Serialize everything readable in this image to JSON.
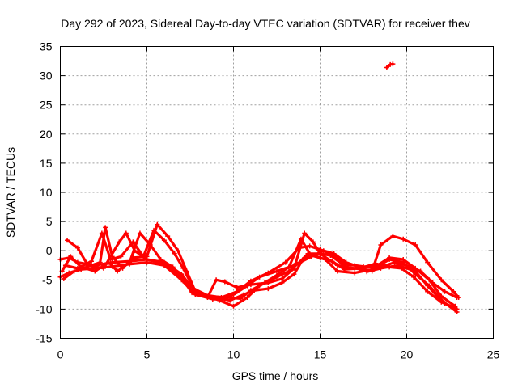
{
  "chart_data": {
    "type": "scatter",
    "title": "Day 292 of 2023, Sidereal Day-to-day VTEC variation (SDTVAR) for receiver thev",
    "xlabel": "GPS time / hours",
    "ylabel": "SDTVAR / TECUs",
    "xlim": [
      0,
      25
    ],
    "ylim": [
      -15,
      35
    ],
    "xticks": [
      "0",
      "5",
      "10",
      "15",
      "20",
      "25"
    ],
    "yticks": [
      "-15",
      "-10",
      "-5",
      "0",
      "5",
      "10",
      "15",
      "20",
      "25",
      "30",
      "35"
    ],
    "grid": true,
    "color": "#ff0000",
    "series": [
      {
        "name": "trace-a",
        "points": [
          [
            0,
            -4.5
          ],
          [
            0.5,
            -3.8
          ],
          [
            1.2,
            -3.2
          ],
          [
            2,
            -3
          ],
          [
            3,
            -2.7
          ],
          [
            4,
            -2.3
          ],
          [
            5,
            -2
          ],
          [
            6,
            -2.5
          ],
          [
            7,
            -5
          ],
          [
            7.8,
            -7.5
          ],
          [
            8.8,
            -8.3
          ],
          [
            9.5,
            -8.3
          ],
          [
            10,
            -7.5
          ],
          [
            10.8,
            -6
          ],
          [
            11.5,
            -4.5
          ],
          [
            12.5,
            -3.5
          ],
          [
            13.5,
            -2.5
          ],
          [
            14.5,
            -1
          ],
          [
            15.2,
            0
          ],
          [
            15.8,
            -1
          ],
          [
            16.5,
            -2.3
          ],
          [
            17.5,
            -2.7
          ],
          [
            18.5,
            -2.8
          ],
          [
            19.3,
            -2
          ],
          [
            20,
            -2.5
          ],
          [
            20.8,
            -3.5
          ],
          [
            21.5,
            -5.5
          ],
          [
            22.2,
            -7
          ],
          [
            22.9,
            -8
          ]
        ]
      },
      {
        "name": "trace-b",
        "points": [
          [
            0,
            -1.5
          ],
          [
            0.5,
            -1.2
          ],
          [
            1,
            -2
          ],
          [
            2,
            -2.5
          ],
          [
            3,
            -2
          ],
          [
            4,
            -1.8
          ],
          [
            5,
            -1.5
          ],
          [
            6,
            -2
          ],
          [
            7,
            -4
          ],
          [
            7.5,
            -6
          ],
          [
            8.2,
            -7.5
          ],
          [
            9.3,
            -8
          ],
          [
            10.2,
            -7
          ],
          [
            11,
            -5.2
          ],
          [
            12,
            -3.8
          ],
          [
            13,
            -2
          ],
          [
            13.8,
            0.5
          ],
          [
            14.4,
            0.8
          ],
          [
            15,
            0.2
          ],
          [
            15.8,
            -0.5
          ],
          [
            16.5,
            -2
          ],
          [
            17.5,
            -3
          ],
          [
            18.3,
            -2.5
          ],
          [
            19,
            -1.2
          ],
          [
            19.8,
            -1.5
          ],
          [
            20.5,
            -3
          ],
          [
            21.3,
            -5
          ],
          [
            22,
            -7.8
          ],
          [
            22.8,
            -9.5
          ]
        ]
      },
      {
        "name": "trace-c",
        "points": [
          [
            0.2,
            -4.8
          ],
          [
            0.8,
            -3.5
          ],
          [
            1.5,
            -2.8
          ],
          [
            2.3,
            -2
          ],
          [
            2.6,
            4
          ],
          [
            3,
            -1
          ],
          [
            3.6,
            -3
          ],
          [
            4.2,
            -1.2
          ],
          [
            5,
            -1
          ],
          [
            5.6,
            4.5
          ],
          [
            6.2,
            2.5
          ],
          [
            6.8,
            0
          ],
          [
            7.3,
            -3.5
          ],
          [
            7.8,
            -7
          ],
          [
            8.5,
            -7.8
          ],
          [
            9.2,
            -8.5
          ],
          [
            10,
            -9.5
          ],
          [
            10.8,
            -8
          ],
          [
            11.5,
            -6
          ],
          [
            12.5,
            -4.5
          ],
          [
            13.2,
            -3.5
          ],
          [
            13.8,
            -2
          ],
          [
            14.3,
            -0.5
          ],
          [
            15,
            -0.5
          ],
          [
            15.6,
            -0.8
          ],
          [
            16.3,
            -2.3
          ],
          [
            17,
            -2.5
          ],
          [
            17.7,
            -3.6
          ],
          [
            18.5,
            -3
          ],
          [
            19.5,
            -2.5
          ],
          [
            20.5,
            -3.5
          ],
          [
            21.2,
            -6
          ],
          [
            22,
            -8.5
          ],
          [
            22.9,
            -10.5
          ]
        ]
      },
      {
        "name": "trace-d",
        "points": [
          [
            0.4,
            1.8
          ],
          [
            1,
            0.5
          ],
          [
            1.6,
            -2.5
          ],
          [
            2.5,
            -3
          ],
          [
            3.4,
            1.5
          ],
          [
            3.8,
            3
          ],
          [
            4.3,
            0
          ],
          [
            5,
            -1.5
          ],
          [
            6,
            -2.2
          ],
          [
            7,
            -4.5
          ],
          [
            7.6,
            -7.2
          ],
          [
            8.5,
            -8
          ],
          [
            9,
            -5
          ],
          [
            9.5,
            -5.3
          ],
          [
            10.2,
            -6.3
          ],
          [
            11,
            -5.8
          ],
          [
            12,
            -5.5
          ],
          [
            12.8,
            -4.8
          ],
          [
            13.5,
            -3
          ],
          [
            14.1,
            3
          ],
          [
            14.6,
            1.5
          ],
          [
            15,
            -0.5
          ],
          [
            16,
            -2.5
          ],
          [
            17,
            -3
          ],
          [
            18,
            -3.5
          ],
          [
            18.5,
            1
          ],
          [
            19.2,
            2.5
          ],
          [
            19.8,
            2
          ],
          [
            20.5,
            1
          ],
          [
            21.2,
            -2
          ],
          [
            22,
            -5
          ],
          [
            22.7,
            -7
          ],
          [
            23,
            -8
          ]
        ]
      },
      {
        "name": "trace-e",
        "points": [
          [
            0.1,
            -3.5
          ],
          [
            0.6,
            -1
          ],
          [
            1.2,
            -2.8
          ],
          [
            2,
            -3.5
          ],
          [
            2.8,
            -2
          ],
          [
            3.3,
            -3.5
          ],
          [
            4,
            -2
          ],
          [
            4.6,
            3
          ],
          [
            5.2,
            1
          ],
          [
            5.8,
            -1.5
          ],
          [
            6.5,
            -2.8
          ],
          [
            7.2,
            -5.5
          ],
          [
            7.8,
            -7.5
          ],
          [
            8.8,
            -8
          ],
          [
            9.8,
            -8.5
          ],
          [
            10.6,
            -7.5
          ],
          [
            11.2,
            -6.8
          ],
          [
            12,
            -6.5
          ],
          [
            12.8,
            -5.5
          ],
          [
            13.5,
            -4
          ],
          [
            14,
            -1.5
          ],
          [
            14.5,
            -0.8
          ],
          [
            15.3,
            -1.5
          ],
          [
            16,
            -3.5
          ],
          [
            17,
            -3.8
          ],
          [
            18,
            -3.2
          ],
          [
            19,
            -1.5
          ],
          [
            19.8,
            -2
          ],
          [
            20.5,
            -4
          ],
          [
            21.3,
            -6
          ],
          [
            22.2,
            -9
          ],
          [
            22.9,
            -10
          ]
        ]
      },
      {
        "name": "trace-f",
        "points": [
          [
            0.3,
            -2.5
          ],
          [
            1,
            -3
          ],
          [
            1.8,
            -1.8
          ],
          [
            2.4,
            3
          ],
          [
            2.9,
            -1.5
          ],
          [
            3.5,
            -1
          ],
          [
            4.2,
            1.5
          ],
          [
            4.8,
            -1
          ],
          [
            5.4,
            3.5
          ],
          [
            6,
            1.8
          ],
          [
            6.6,
            -0.5
          ],
          [
            7.1,
            -3
          ],
          [
            7.7,
            -6.5
          ],
          [
            8.6,
            -7.8
          ],
          [
            9.6,
            -8
          ],
          [
            10.4,
            -8.2
          ],
          [
            11,
            -6.8
          ],
          [
            11.8,
            -5.5
          ],
          [
            12.6,
            -4
          ],
          [
            13.2,
            -2.8
          ],
          [
            13.9,
            2
          ],
          [
            14.4,
            -0.5
          ],
          [
            15,
            -1.2
          ],
          [
            15.7,
            -1.8
          ],
          [
            16.4,
            -3.2
          ],
          [
            17.3,
            -3
          ],
          [
            18.2,
            -2.2
          ],
          [
            19,
            -2.8
          ],
          [
            19.7,
            -3
          ],
          [
            20.4,
            -4.5
          ],
          [
            21.2,
            -7
          ],
          [
            22,
            -8.8
          ],
          [
            22.8,
            -9.8
          ]
        ]
      },
      {
        "name": "outlier",
        "points": [
          [
            18.85,
            31.4
          ],
          [
            19.05,
            31.9
          ],
          [
            19.2,
            32
          ]
        ]
      }
    ]
  }
}
